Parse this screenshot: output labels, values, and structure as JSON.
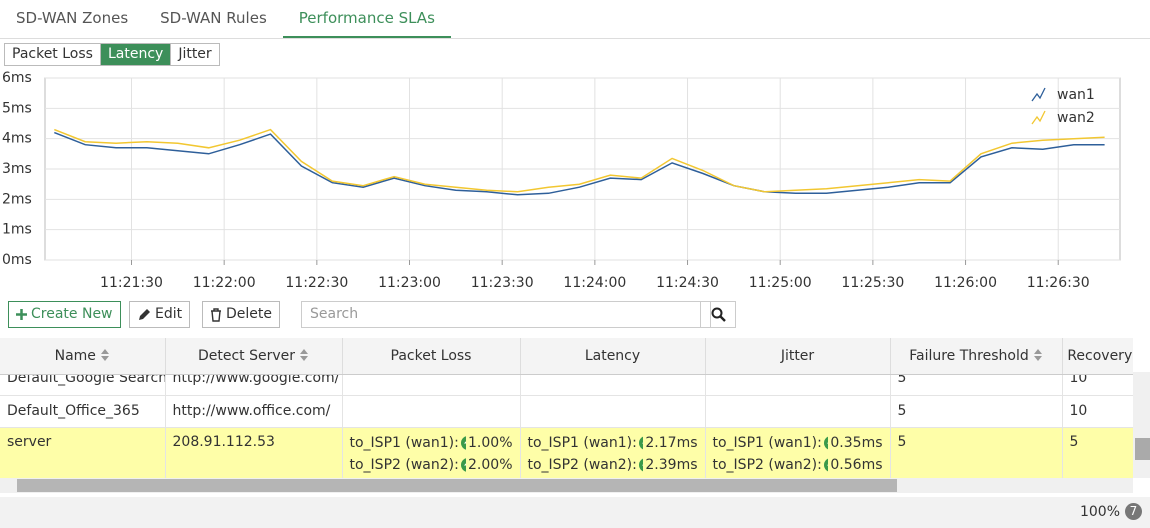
{
  "tabs": [
    "SD-WAN Zones",
    "SD-WAN Rules",
    "Performance SLAs"
  ],
  "active_tab": 2,
  "metric_buttons": [
    "Packet Loss",
    "Latency",
    "Jitter"
  ],
  "active_metric": 1,
  "chart_data": {
    "type": "line",
    "x": [
      "11:21:05",
      "11:21:15",
      "11:21:25",
      "11:21:35",
      "11:21:45",
      "11:21:55",
      "11:22:05",
      "11:22:15",
      "11:22:25",
      "11:22:35",
      "11:22:45",
      "11:22:55",
      "11:23:05",
      "11:23:15",
      "11:23:25",
      "11:23:35",
      "11:23:45",
      "11:23:55",
      "11:24:05",
      "11:24:15",
      "11:24:25",
      "11:24:35",
      "11:24:45",
      "11:24:55",
      "11:25:05",
      "11:25:15",
      "11:25:25",
      "11:25:35",
      "11:25:45",
      "11:25:55",
      "11:26:05",
      "11:26:15",
      "11:26:25",
      "11:26:35",
      "11:26:45"
    ],
    "series": [
      {
        "name": "wan1",
        "color": "#2e5f9a",
        "values": [
          4.2,
          3.8,
          3.7,
          3.7,
          3.6,
          3.5,
          3.8,
          4.15,
          3.1,
          2.55,
          2.4,
          2.7,
          2.45,
          2.3,
          2.25,
          2.15,
          2.2,
          2.4,
          2.7,
          2.65,
          3.2,
          2.85,
          2.45,
          2.25,
          2.2,
          2.2,
          2.3,
          2.4,
          2.55,
          2.55,
          3.4,
          3.7,
          3.65,
          3.8,
          3.8
        ]
      },
      {
        "name": "wan2",
        "color": "#f2c731",
        "values": [
          4.3,
          3.9,
          3.85,
          3.9,
          3.85,
          3.7,
          3.95,
          4.3,
          3.25,
          2.6,
          2.45,
          2.75,
          2.5,
          2.4,
          2.3,
          2.25,
          2.4,
          2.5,
          2.8,
          2.7,
          3.35,
          2.95,
          2.45,
          2.25,
          2.3,
          2.35,
          2.45,
          2.55,
          2.65,
          2.6,
          3.5,
          3.85,
          3.95,
          4.0,
          4.05
        ]
      }
    ],
    "xlim": [
      "11:21:02",
      "11:26:50"
    ],
    "xticks": [
      "11:21:30",
      "11:22:00",
      "11:22:30",
      "11:23:00",
      "11:23:30",
      "11:24:00",
      "11:24:30",
      "11:25:00",
      "11:25:30",
      "11:26:00",
      "11:26:30"
    ],
    "ylim": [
      0,
      6
    ],
    "yticks": [
      {
        "value": 0,
        "label": "0ms"
      },
      {
        "value": 1,
        "label": "1ms"
      },
      {
        "value": 2,
        "label": "2ms"
      },
      {
        "value": 3,
        "label": "3ms"
      },
      {
        "value": 4,
        "label": "4ms"
      },
      {
        "value": 5,
        "label": "5ms"
      },
      {
        "value": 6,
        "label": "6ms"
      }
    ],
    "grid": true,
    "legend": "upper right"
  },
  "toolbar": {
    "create": "Create New",
    "edit": "Edit",
    "delete": "Delete",
    "search_placeholder": "Search"
  },
  "table": {
    "columns": [
      "Name",
      "Detect Server",
      "Packet Loss",
      "Latency",
      "Jitter",
      "Failure Threshold",
      "Recovery Threshold"
    ],
    "rows": [
      {
        "name": "Default_Google Search",
        "server": "http://www.google.com/",
        "failure": "5",
        "recovery": "10"
      },
      {
        "name": "Default_Office_365",
        "server": "http://www.office.com/",
        "failure": "5",
        "recovery": "10"
      },
      {
        "name": "server",
        "server": "208.91.112.53",
        "packet_loss": [
          {
            "label": "to_ISP1 (wan1):",
            "value": "1.00%"
          },
          {
            "label": "to_ISP2 (wan2):",
            "value": "2.00%"
          }
        ],
        "latency": [
          {
            "label": "to_ISP1 (wan1):",
            "value": "2.17ms"
          },
          {
            "label": "to_ISP2 (wan2):",
            "value": "2.39ms"
          }
        ],
        "jitter": [
          {
            "label": "to_ISP1 (wan1):",
            "value": "0.35ms"
          },
          {
            "label": "to_ISP2 (wan2):",
            "value": "0.56ms"
          }
        ],
        "failure": "5",
        "recovery": "5",
        "highlight": true
      }
    ]
  },
  "footer": {
    "zoom": "100%",
    "badge": "7"
  }
}
